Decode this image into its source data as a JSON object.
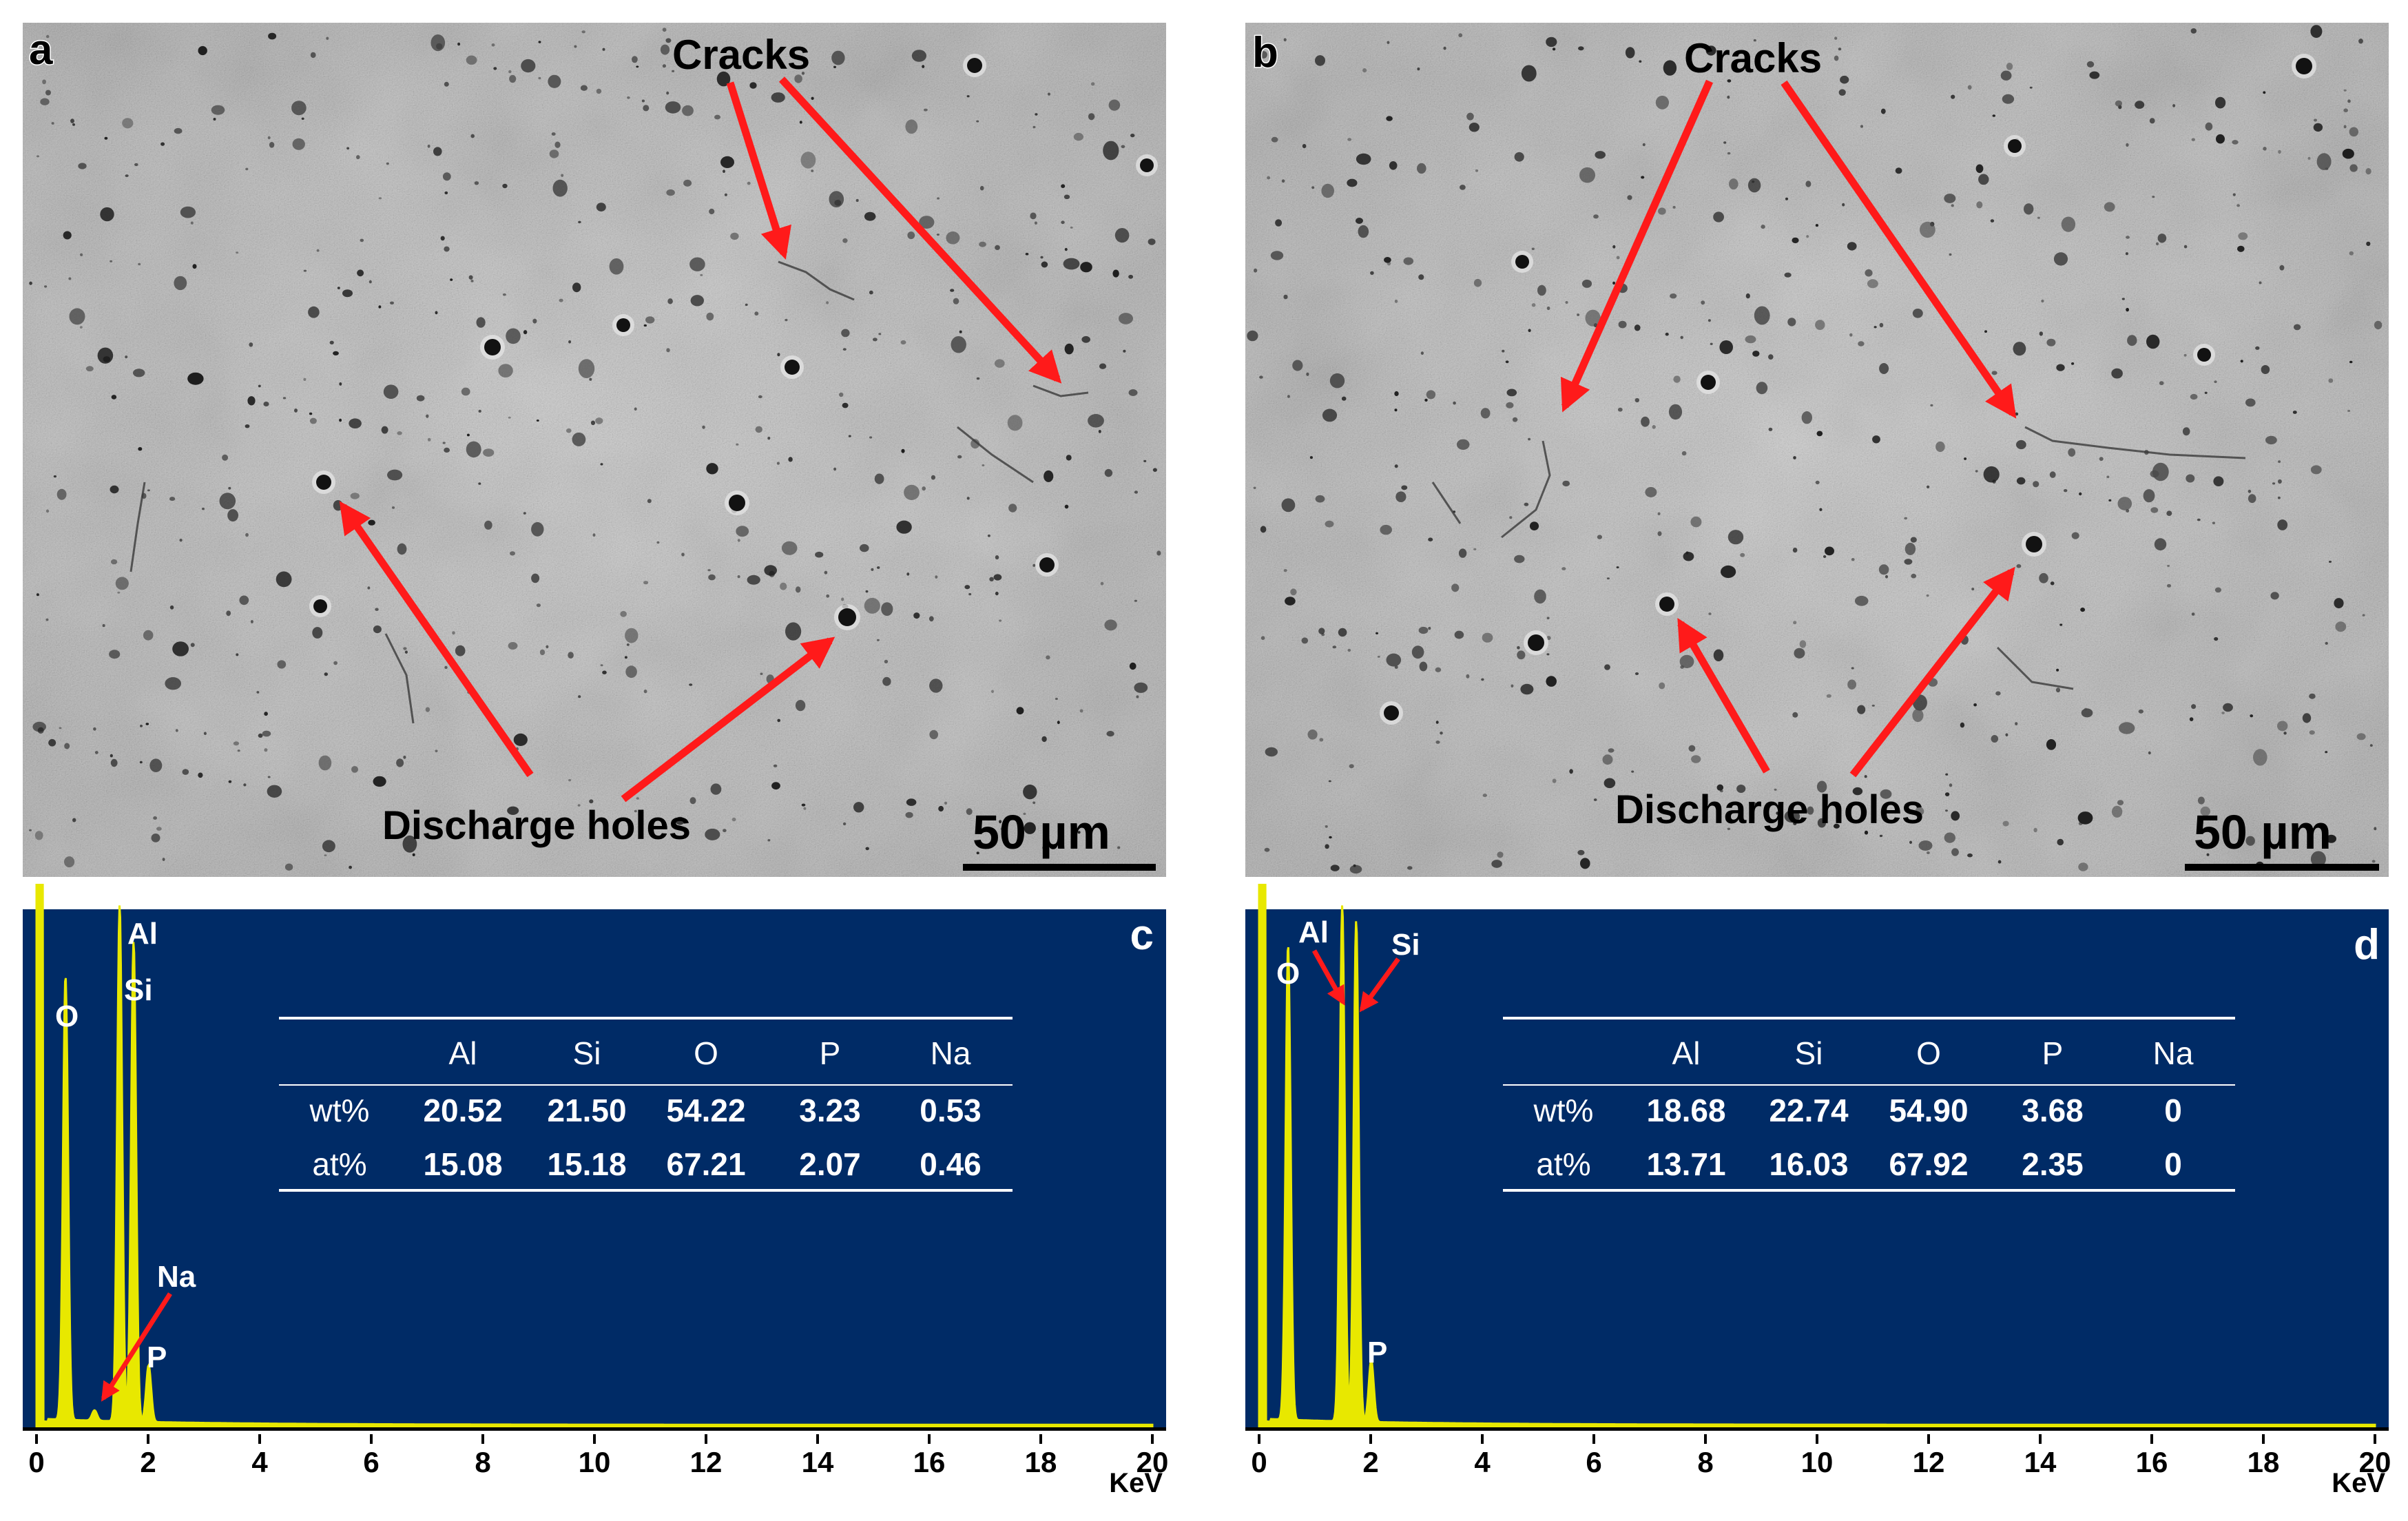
{
  "panels": {
    "a": {
      "label": "a",
      "annotations": {
        "cracks": "Cracks",
        "holes": "Discharge holes"
      },
      "scale_bar": "50 µm"
    },
    "b": {
      "label": "b",
      "annotations": {
        "cracks": "Cracks",
        "holes": "Discharge holes"
      },
      "scale_bar": "50 µm"
    },
    "c": {
      "label": "c",
      "peak_labels": {
        "o": "O",
        "al": "Al",
        "si": "Si",
        "na": "Na",
        "p": "P"
      },
      "x_unit": "KeV",
      "table": {
        "header": [
          "Al",
          "Si",
          "O",
          "P",
          "Na"
        ],
        "rows": [
          {
            "label": "wt%",
            "values": [
              "20.52",
              "21.50",
              "54.22",
              "3.23",
              "0.53"
            ]
          },
          {
            "label": "at%",
            "values": [
              "15.08",
              "15.18",
              "67.21",
              "2.07",
              "0.46"
            ]
          }
        ]
      }
    },
    "d": {
      "label": "d",
      "peak_labels": {
        "o": "O",
        "al": "Al",
        "si": "Si",
        "p": "P"
      },
      "x_unit": "KeV",
      "table": {
        "header": [
          "Al",
          "Si",
          "O",
          "P",
          "Na"
        ],
        "rows": [
          {
            "label": "wt%",
            "values": [
              "18.68",
              "22.74",
              "54.90",
              "3.68",
              "0"
            ]
          },
          {
            "label": "at%",
            "values": [
              "13.71",
              "16.03",
              "67.92",
              "2.35",
              "0"
            ]
          }
        ]
      }
    }
  },
  "chart_data": [
    {
      "type": "line",
      "panel": "c",
      "x_unit": "KeV",
      "xlim": [
        0,
        20
      ],
      "x_ticks": [
        0,
        2,
        4,
        6,
        8,
        10,
        12,
        14,
        16,
        18,
        20
      ],
      "peaks": [
        {
          "element": "O",
          "energy_kev": 0.52,
          "relative_height": 0.86
        },
        {
          "element": "Na",
          "energy_kev": 1.04,
          "relative_height": 0.02
        },
        {
          "element": "Al",
          "energy_kev": 1.49,
          "relative_height": 1.0
        },
        {
          "element": "Si",
          "energy_kev": 1.74,
          "relative_height": 0.93
        },
        {
          "element": "P",
          "energy_kev": 2.01,
          "relative_height": 0.11
        }
      ],
      "colors": {
        "background": "#002b66",
        "trace": "#e8e800",
        "axis": "#000000",
        "text": "#ffffff",
        "arrow": "#ff1a1a"
      }
    },
    {
      "type": "line",
      "panel": "d",
      "x_unit": "KeV",
      "xlim": [
        0,
        20
      ],
      "x_ticks": [
        0,
        2,
        4,
        6,
        8,
        10,
        12,
        14,
        16,
        18,
        20
      ],
      "peaks": [
        {
          "element": "O",
          "energy_kev": 0.52,
          "relative_height": 0.92
        },
        {
          "element": "Al",
          "energy_kev": 1.49,
          "relative_height": 1.0
        },
        {
          "element": "Si",
          "energy_kev": 1.74,
          "relative_height": 0.97
        },
        {
          "element": "P",
          "energy_kev": 2.01,
          "relative_height": 0.12
        }
      ],
      "colors": {
        "background": "#002b66",
        "trace": "#e8e800",
        "axis": "#000000",
        "text": "#ffffff",
        "arrow": "#ff1a1a"
      }
    }
  ]
}
